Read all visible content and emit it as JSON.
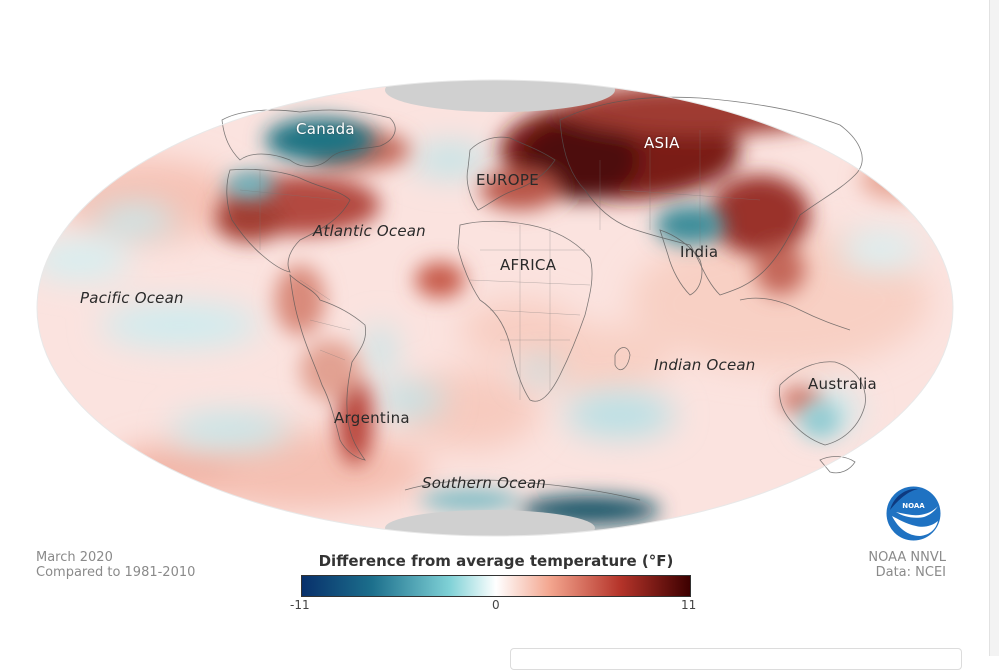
{
  "map": {
    "labels": {
      "canada": "Canada",
      "asia": "ASIA",
      "europe": "EUROPE",
      "atlantic": "Atlantic Ocean",
      "africa": "AFRICA",
      "india": "India",
      "pacific": "Pacific Ocean",
      "indian": "Indian Ocean",
      "australia": "Australia",
      "argentina": "Argentina",
      "southern": "Southern Ocean"
    }
  },
  "meta": {
    "date": "March 2020",
    "baseline": "Compared to 1981-2010",
    "source_org": "NOAA NNVL",
    "source_data": "Data: NCEI"
  },
  "legend": {
    "title": "Difference from average temperature (°F)",
    "min_label": "-11",
    "mid_label": "0",
    "max_label": "11",
    "colors": [
      "#08306b",
      "#1c6f8c",
      "#5fc1cc",
      "#ffffff",
      "#f3a58e",
      "#b5342a",
      "#3d0000"
    ]
  },
  "logo": {
    "name": "noaa-logo",
    "text": "NOAA"
  }
}
